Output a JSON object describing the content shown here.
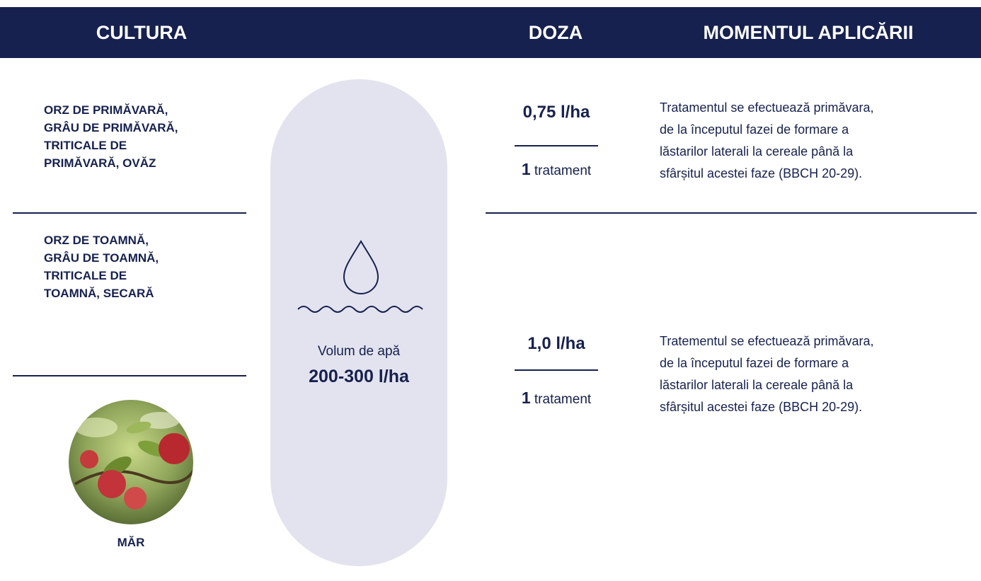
{
  "header": {
    "columns": [
      "CULTURA",
      "DOZA",
      "MOMENTUL APLICĂRII"
    ]
  },
  "crops": [
    {
      "lines": [
        "ORZ DE PRIMĂVARĂ,",
        "GRÂU DE PRIMĂVARĂ,",
        "TRITICALE DE",
        "PRIMĂVARĂ, OVĂZ"
      ]
    },
    {
      "lines": [
        "ORZ DE TOAMNĂ,",
        "GRÂU DE TOAMNĂ,",
        "TRITICALE DE",
        "TOAMNĂ, SECARĂ"
      ]
    },
    {
      "label": "MĂR"
    }
  ],
  "water": {
    "label": "Volum de apă",
    "value": "200-300 l/ha"
  },
  "doses": [
    {
      "dose": "0,75 l/ha",
      "count": "1",
      "unit": "tratament",
      "timing": [
        "Tratamentul se efectuează primăvara,",
        "de la începutul fazei de formare a",
        "lăstarilor laterali la cereale până la",
        "sfârșitul acestei faze (BBCH 20-29)."
      ]
    },
    {
      "dose": "1,0 l/ha",
      "count": "1",
      "unit": "tratament",
      "timing": [
        "Tratementul se efectuează primăvara,",
        "de la începutul fazei de formare a",
        "lăstarilor laterali la cereale până la",
        "sfârșitul acestei faze (BBCH 20-29)."
      ]
    }
  ]
}
